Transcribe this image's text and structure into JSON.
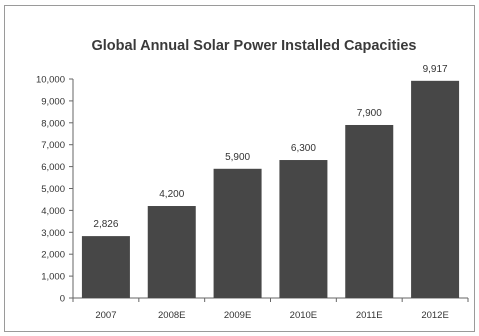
{
  "chart_data": {
    "type": "bar",
    "title": "Global Annual Solar Power Installed Capacities",
    "xlabel": "",
    "ylabel": "",
    "categories": [
      "2007",
      "2008E",
      "2009E",
      "2010E",
      "2011E",
      "2012E"
    ],
    "values": [
      2826,
      4200,
      5900,
      6300,
      7900,
      9917
    ],
    "data_labels": [
      "2,826",
      "4,200",
      "5,900",
      "6,300",
      "7,900",
      "9,917"
    ],
    "ylim": [
      0,
      10000
    ],
    "yticks": [
      0,
      1000,
      2000,
      3000,
      4000,
      5000,
      6000,
      7000,
      8000,
      9000,
      10000
    ],
    "ytick_labels": [
      "0",
      "1,000",
      "2,000",
      "3,000",
      "4,000",
      "5,000",
      "6,000",
      "7,000",
      "8,000",
      "9,000",
      "10,000"
    ],
    "grid": false,
    "legend": "none",
    "bar_color": "#474747",
    "axis_color": "#666666"
  }
}
